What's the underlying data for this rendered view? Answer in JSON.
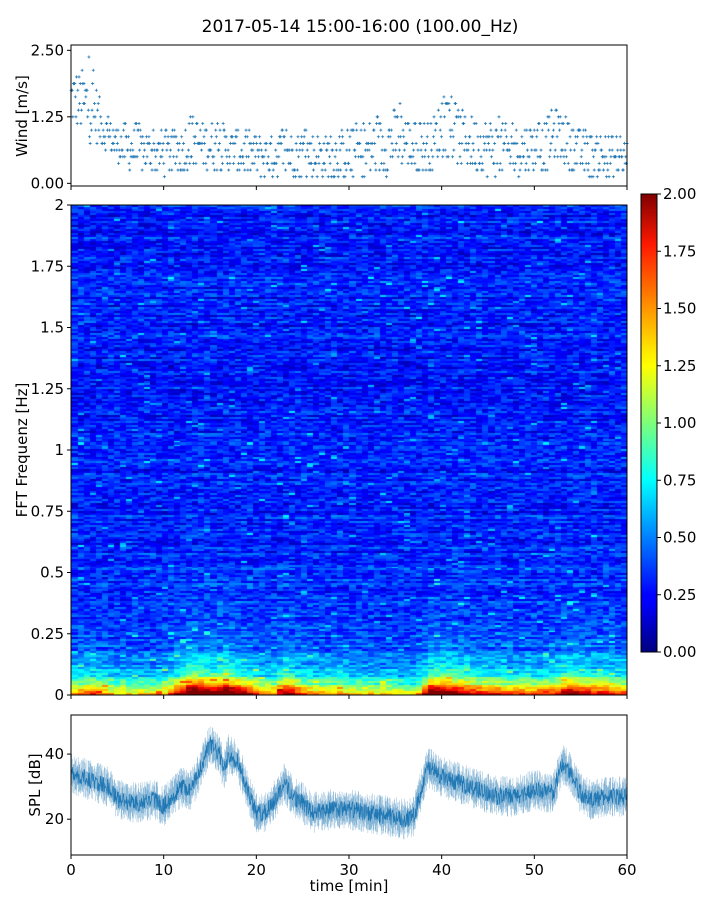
{
  "title": "2017-05-14 15:00-16:00 (100.00_Hz)",
  "colors": {
    "series": "#1f77b4",
    "colormap": "jet",
    "axis": "#000000"
  },
  "chart_data": [
    {
      "id": "wind",
      "type": "scatter",
      "title": "",
      "xlabel": "",
      "ylabel": "Wind [m/s]",
      "xlim": [
        0,
        60
      ],
      "ylim": [
        -0.05,
        2.6
      ],
      "xticks": [
        0,
        10,
        20,
        30,
        40,
        50,
        60
      ],
      "yticks": [
        {
          "value": 0.0,
          "label": "0.00"
        },
        {
          "value": 1.25,
          "label": "1.25"
        },
        {
          "value": 2.5,
          "label": "2.50"
        }
      ],
      "marker": "+",
      "quantization_step": 0.125,
      "envelope": {
        "x": [
          0,
          1,
          2,
          3,
          4,
          5,
          6,
          7,
          8,
          10,
          12,
          13,
          15,
          17,
          19,
          21,
          23,
          25,
          27,
          30,
          32,
          34,
          35.5,
          37,
          39,
          39.5,
          41,
          42,
          44,
          46,
          48,
          50,
          51,
          52,
          52.5,
          54,
          56,
          58,
          60
        ],
        "y_mid": [
          1.6,
          1.55,
          1.45,
          1.2,
          0.9,
          0.75,
          0.65,
          0.65,
          0.6,
          0.55,
          0.6,
          0.8,
          0.7,
          0.65,
          0.55,
          0.5,
          0.6,
          0.55,
          0.5,
          0.55,
          0.6,
          0.75,
          0.9,
          0.65,
          0.7,
          0.9,
          1.0,
          0.85,
          0.7,
          0.65,
          0.6,
          0.7,
          0.65,
          0.9,
          0.95,
          0.7,
          0.55,
          0.45,
          0.45
        ],
        "y_max": [
          2.35,
          2.2,
          2.5,
          1.75,
          1.3,
          1.05,
          1.15,
          1.2,
          1.0,
          1.0,
          1.1,
          1.4,
          1.2,
          1.1,
          1.0,
          0.95,
          1.1,
          1.0,
          1.0,
          1.1,
          1.3,
          1.5,
          1.65,
          1.2,
          1.3,
          1.5,
          1.7,
          1.5,
          1.3,
          1.3,
          1.1,
          1.25,
          1.2,
          1.5,
          1.5,
          1.2,
          1.0,
          0.95,
          0.95
        ]
      }
    },
    {
      "id": "spectrogram",
      "type": "heatmap",
      "title": "",
      "xlabel": "",
      "ylabel": "FFT Frequenz [Hz]",
      "xlim": [
        0,
        60
      ],
      "ylim": [
        0,
        2
      ],
      "xticks": [
        0,
        10,
        20,
        30,
        40,
        50,
        60
      ],
      "yticks": [
        {
          "value": 0,
          "label": "0"
        },
        {
          "value": 0.25,
          "label": "0.25"
        },
        {
          "value": 0.5,
          "label": "0.5"
        },
        {
          "value": 0.75,
          "label": "0.75"
        },
        {
          "value": 1,
          "label": "1"
        },
        {
          "value": 1.25,
          "label": "1.25"
        },
        {
          "value": 1.5,
          "label": "1.5"
        },
        {
          "value": 1.75,
          "label": "1.75"
        },
        {
          "value": 2,
          "label": "2"
        }
      ],
      "colorbar": {
        "range": [
          0,
          2
        ],
        "ticks": [
          "0.00",
          "0.25",
          "0.50",
          "0.75",
          "1.00",
          "1.25",
          "1.50",
          "1.75",
          "2.00"
        ]
      },
      "column_energy": {
        "x": [
          0,
          2,
          5,
          8,
          10,
          12,
          13,
          15,
          17,
          19,
          21,
          22,
          23,
          25,
          27,
          30,
          33,
          35,
          37,
          38,
          39,
          41,
          43,
          45,
          48,
          50,
          52,
          54,
          56,
          58,
          60
        ],
        "level": [
          0.8,
          0.95,
          0.7,
          0.7,
          0.75,
          1.2,
          1.55,
          1.3,
          1.45,
          1.1,
          0.8,
          0.85,
          1.3,
          0.9,
          0.8,
          0.75,
          0.7,
          0.7,
          0.6,
          1.0,
          1.45,
          1.25,
          1.1,
          1.0,
          0.9,
          0.95,
          1.0,
          1.25,
          1.05,
          1.05,
          0.9
        ]
      },
      "background_level": 0.3
    },
    {
      "id": "spl",
      "type": "line",
      "title": "",
      "xlabel": "time [min]",
      "ylabel": "SPL [dB]",
      "xlim": [
        0,
        60
      ],
      "ylim": [
        9,
        52
      ],
      "xticks": [
        0,
        10,
        20,
        30,
        40,
        50,
        60
      ],
      "yticks": [
        {
          "value": 20,
          "label": "20"
        },
        {
          "value": 40,
          "label": "40"
        }
      ],
      "x": [
        0,
        2,
        4,
        5,
        7,
        9,
        10,
        11,
        12,
        13,
        14,
        15,
        16,
        16.5,
        17,
        18,
        19,
        20,
        21,
        22,
        23,
        24,
        25,
        26,
        28,
        30,
        32,
        34,
        36,
        37,
        37.5,
        38.5,
        40,
        42,
        44,
        46,
        48,
        50,
        52,
        53,
        54,
        55,
        56,
        58,
        60
      ],
      "y": [
        34,
        32,
        30,
        26,
        25,
        26,
        24,
        27,
        30,
        29,
        36,
        43,
        40,
        35,
        40,
        38,
        29,
        22,
        22,
        26,
        31,
        27,
        25,
        22,
        23,
        23,
        22,
        21,
        20,
        21,
        26,
        36,
        33,
        31,
        29,
        27,
        27,
        29,
        28,
        37,
        34,
        28,
        26,
        27,
        27
      ],
      "spread": 4.5
    }
  ]
}
